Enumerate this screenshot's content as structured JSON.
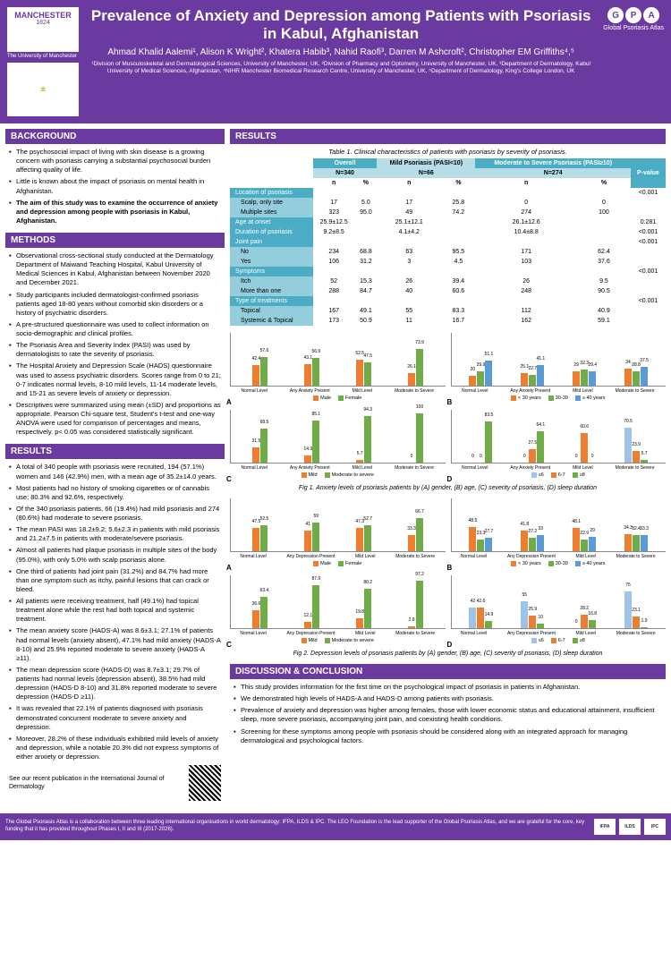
{
  "header": {
    "uni_name": "MANCHESTER",
    "uni_year": "1824",
    "uni_sub": "The University of Manchester",
    "title": "Prevalence of Anxiety and Depression among Patients with Psoriasis in Kabul, Afghanistan",
    "authors": "Ahmad Khalid Aalemi¹, Alison K Wright², Khatera Habib³, Nahid Raofi³, Darren M Ashcroft², Christopher EM Griffiths⁴,⁵",
    "affil": "¹Division of Musculoskeletal and Dermatological Sciences, University of Manchester, UK, ²Division of Pharmacy and Optometry, University of Manchester, UK, ³Department of Dermatology, Kabul University of Medical Sciences, Afghanistan, ⁴NIHR Manchester Biomedical Research Centre, University of Manchester, UK, ⁵Department of Dermatology, King's College London, UK",
    "gpa_label": "Global Psoriasis Atlas"
  },
  "sections": {
    "background": "BACKGROUND",
    "methods": "METHODS",
    "results": "RESULTS",
    "discussion": "DISCUSSION & CONCLUSION"
  },
  "background_items": [
    "The psychosocial impact of living with skin disease is a growing concern with psoriasis carrying a substantial psychosocial burden affecting quality of life.",
    "Little is known about the impact of psoriasis on mental health in Afghanistan."
  ],
  "background_bold": "The aim of this study was to examine the occurrence of anxiety and depression among people with psoriasis in Kabul, Afghanistan.",
  "methods_items": [
    "Observational cross-sectional study conducted at the Dermatology Department of Maiwand Teaching Hospital, Kabul University of Medical Sciences in Kabul, Afghanistan between November 2020 and December 2021.",
    "Study participants included dermatologist-confirmed psoriasis patients aged 18-80 years without comorbid skin disorders or a history of psychiatric disorders.",
    "A pre-structured questionnaire was used to collect information on socio-demographic and clinical profiles.",
    "The Psoriasis Area and Severity Index (PASI) was used by dermatologists to rate the severity of psoriasis.",
    "The Hospital Anxiety and Depression Scale (HADS) questionnaire was used to assess psychiatric disorders. Scores range from 0 to 21; 0-7 indicates normal levels, 8-10 mild levels, 11-14 moderate levels, and 15-21 as severe levels of anxiety or depression.",
    "Descriptives were summarized using mean (±SD) and proportions as appropriate. Pearson Chi-square test, Student's t-test and one-way ANOVA were used for comparison of percentages and means, respectively. p< 0.05 was considered statistically significant."
  ],
  "results_items": [
    "A total of 340 people with psoriasis were recruited, 194 (57.1%) women and 146 (42.9%) men, with a mean age of 35.2±14.0 years.",
    "Most patients had no history of smoking cigarettes or of cannabis use; 80.3% and 92.6%, respectively.",
    "Of the 340 psoriasis patients, 66 (19.4%) had mild psoriasis and 274 (80.6%) had moderate to severe psoriasis.",
    "The mean PASI was 18.2±9.2; 5.6±2.3 in patients with mild psoriasis and 21.2±7.5 in patients with moderate/severe psoriasis.",
    "Almost all patients had plaque psoriasis in multiple sites of the body (95.0%), with only 5.0% with scalp psoriasis alone.",
    "One third of patients had joint pain (31.2%) and 84.7% had more than one symptom such as itchy, painful lesions that can crack or bleed.",
    "All patients were receiving treatment, half (49.1%) had topical treatment alone while the rest had both topical and systemic treatment.",
    "The mean anxiety score (HADS-A) was 8.6±3.1; 27.1% of patients had normal levels (anxiety absent), 47.1% had mild anxiety (HADS-A 8-10) and 25.9% reported moderate to severe anxiety (HADS-A ≥11).",
    "The mean depression score (HADS-D) was 8.7±3.1; 29.7% of patients had normal levels (depression absent), 38.5% had mild depression (HADS-D 8-10) and 31.8% reported moderate to severe depression (HADS-D ≥11).",
    "It was revealed that 22.1% of patients diagnosed with psoriasis demonstrated concurrent moderate to severe anxiety and depression.",
    "Moreover, 28.2% of these individuals exhibited mild levels of anxiety and depression, while a notable 20.3% did not express symptoms of either anxiety or depression."
  ],
  "qr_text": "See our recent publication in the International Journal of Dermatology",
  "table": {
    "caption": "Table 1. Clinical characteristics of patients with psoriasis by severity of psoriasis.",
    "headers": {
      "overall": "Overall",
      "mild": "Mild Psoriasis (PASI<10)",
      "severe": "Moderate to Severe Psoriasis (PASI≥10)",
      "pval": "P-value",
      "n_overall": "N=340",
      "n_mild": "N=66",
      "n_severe": "N=274"
    },
    "rows": [
      {
        "label": "Location of psoriasis",
        "type": "header",
        "pval": "<0.001"
      },
      {
        "label": "Scalp, only site",
        "type": "sub",
        "vals": [
          "17",
          "5.0",
          "17",
          "25.8",
          "0",
          "0"
        ]
      },
      {
        "label": "Multiple sites",
        "type": "sub",
        "vals": [
          "323",
          "95.0",
          "49",
          "74.2",
          "274",
          "100"
        ]
      },
      {
        "label": "Age at onset",
        "type": "header",
        "vals": [
          "25.9±12.5",
          "",
          "25.1±12.1",
          "",
          "26.1±12.6",
          ""
        ],
        "pval": "0.281"
      },
      {
        "label": "Duration of psoriasis",
        "type": "header",
        "vals": [
          "9.2±8.5",
          "",
          "4.1±4.2",
          "",
          "10.4±8.8",
          ""
        ],
        "pval": "<0.001"
      },
      {
        "label": "Joint pain",
        "type": "header",
        "pval": "<0.001"
      },
      {
        "label": "No",
        "type": "sub",
        "vals": [
          "234",
          "68.8",
          "63",
          "95.5",
          "171",
          "62.4"
        ]
      },
      {
        "label": "Yes",
        "type": "sub",
        "vals": [
          "106",
          "31.2",
          "3",
          "4.5",
          "103",
          "37.6"
        ]
      },
      {
        "label": "Symptoms",
        "type": "header",
        "pval": "<0.001"
      },
      {
        "label": "Itch",
        "type": "sub",
        "vals": [
          "52",
          "15.3",
          "26",
          "39.4",
          "26",
          "9.5"
        ]
      },
      {
        "label": "More than one",
        "type": "sub",
        "vals": [
          "288",
          "84.7",
          "40",
          "60.6",
          "248",
          "90.5"
        ]
      },
      {
        "label": "Type of treatments",
        "type": "header",
        "pval": "<0.001"
      },
      {
        "label": "Topical",
        "type": "sub",
        "vals": [
          "167",
          "49.1",
          "55",
          "83.3",
          "112",
          "40.9"
        ]
      },
      {
        "label": "Systemic & Topical",
        "type": "sub",
        "vals": [
          "173",
          "50.9",
          "11",
          "16.7",
          "162",
          "59.1"
        ]
      }
    ]
  },
  "fig1_caption": "Fig 1. Anxiety levels of psoriasis patients by (A) gender, (B) age, (C) severity of psoriasis, (D) sleep duration",
  "fig2_caption": "Fig 2. Depression levels of psoriasis patients by (A) gender, (B) age, (C) severity of psoriasis, (D) sleep duration",
  "colors": {
    "purple": "#6b3aa0",
    "teal_dark": "#4bacc6",
    "teal_light": "#b7dde8",
    "orange": "#ed7d31",
    "green": "#70ad47",
    "blue": "#5b9bd5",
    "lightblue": "#9dc3e6"
  },
  "charts": {
    "xlabels": [
      "Normal Level",
      "Any Anxiety Present",
      "Mild Level",
      "Moderate to Severe"
    ],
    "xlabels_dep": [
      "Normal Level",
      "Any Depression Present",
      "Mild Level",
      "Moderate to Severe"
    ],
    "f1a": {
      "series": [
        "Male",
        "Female"
      ],
      "colors": [
        "#ed7d31",
        "#70ad47"
      ],
      "data": [
        [
          42.4,
          57.6
        ],
        [
          43.1,
          56.9
        ],
        [
          52.5,
          47.5
        ],
        [
          26.1,
          73.9
        ]
      ]
    },
    "f1b": {
      "series": [
        "< 30 years",
        "30-39",
        "≥ 40 years"
      ],
      "colors": [
        "#ed7d31",
        "#70ad47",
        "#5b9bd5"
      ],
      "data": [
        [
          20,
          29.9,
          51.1
        ],
        [
          25.1,
          22.7,
          41.1
        ],
        [
          29,
          32.3,
          29.4
        ],
        [
          34,
          28.8,
          37.5
        ]
      ]
    },
    "f1c": {
      "series": [
        "Mild",
        "Moderate to severe"
      ],
      "colors": [
        "#ed7d31",
        "#70ad47"
      ],
      "data": [
        [
          31.5,
          68.5
        ],
        [
          14.9,
          85.1
        ],
        [
          5.7,
          94.3
        ],
        [
          0,
          100
        ]
      ]
    },
    "f1d": {
      "series": [
        "≤6",
        "6-7",
        "≥8"
      ],
      "colors": [
        "#9dc3e6",
        "#ed7d31",
        "#70ad47"
      ],
      "data": [
        [
          0,
          0,
          83.5
        ],
        [
          0,
          27.5,
          64.1
        ],
        [
          0,
          60.6,
          0
        ],
        [
          70.5,
          23.9,
          5.7
        ]
      ]
    },
    "f2a": {
      "series": [
        "Male",
        "Female"
      ],
      "colors": [
        "#ed7d31",
        "#70ad47"
      ],
      "data": [
        [
          47.5,
          52.5
        ],
        [
          41,
          59
        ],
        [
          47.3,
          52.7
        ],
        [
          33.3,
          66.7
        ]
      ]
    },
    "f2b": {
      "series": [
        "< 30 years",
        "30-39",
        "≥ 40 years"
      ],
      "colors": [
        "#ed7d31",
        "#70ad47",
        "#5b9bd5"
      ],
      "data": [
        [
          48.5,
          23.3,
          27.7
        ],
        [
          41.8,
          27.2,
          33
        ],
        [
          48.1,
          22.9,
          29
        ],
        [
          34.3,
          32.4,
          33.3
        ]
      ]
    },
    "f2c": {
      "series": [
        "Mild",
        "Moderate to severe"
      ],
      "colors": [
        "#ed7d31",
        "#70ad47"
      ],
      "data": [
        [
          36.6,
          63.4
        ],
        [
          12.1,
          87.9
        ],
        [
          19.8,
          80.2
        ],
        [
          2.8,
          97.2
        ]
      ]
    },
    "f2d": {
      "series": [
        "≤6",
        "6-7",
        "≥8"
      ],
      "colors": [
        "#9dc3e6",
        "#ed7d31",
        "#70ad47"
      ],
      "data": [
        [
          42,
          42.6,
          14.9
        ],
        [
          55,
          25.9,
          10
        ],
        [
          0,
          28.2,
          16.8
        ],
        [
          75,
          23.1,
          1.9
        ]
      ]
    }
  },
  "discussion_items": [
    "This study provides information for the first time on the psychological impact of psoriasis in patients in Afghanistan.",
    "We demonstrated high levels of HADS-A and HADS-D among patients with psoriasis.",
    "Prevalence of anxiety and depression was higher among females, those with lower economic status and educational attainment, insufficient sleep, more severe psoriasis, accompanying joint pain, and coexisting health conditions.",
    "Screening for these symptoms among people with psoriasis should be considered along with an integrated approach for managing dermatological and psychological factors."
  ],
  "footer": {
    "text": "The Global Psoriasis Atlas is a collaboration between three leading international organisations in world dermatology: IFPA, ILDS & IPC. The LEO Foundation is the lead supporter of the Global Psoriasis Atlas, and we are grateful for the core, key funding that it has provided throughout Phases I, II and III (2017-2026).",
    "logos": [
      "IFPA",
      "ILDS",
      "IPC"
    ]
  }
}
